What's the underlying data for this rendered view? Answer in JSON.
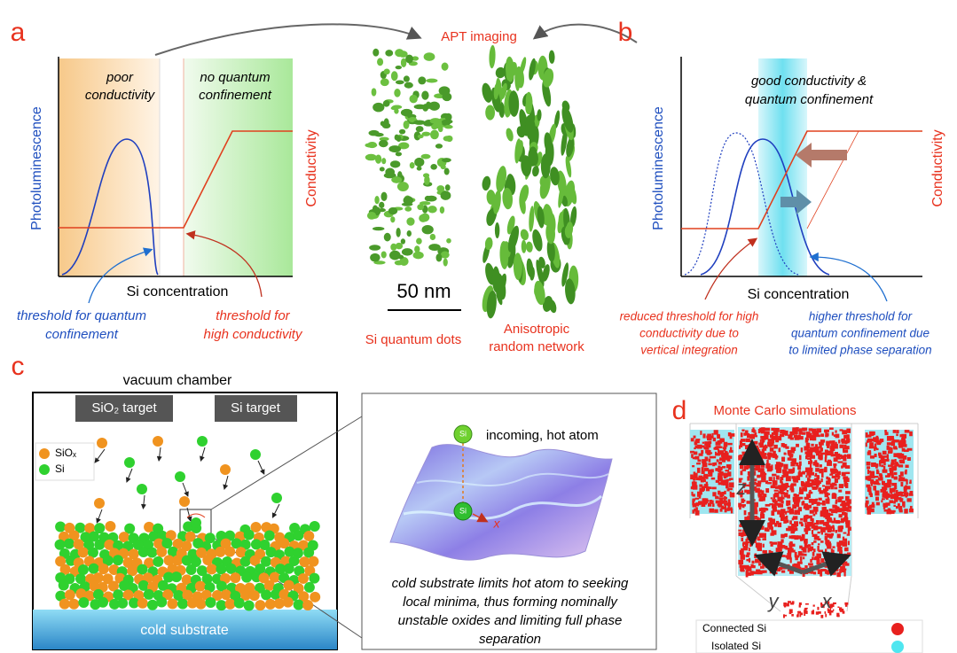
{
  "panel_a": {
    "letter": "a",
    "region_left": [
      "poor",
      "conductivity"
    ],
    "region_right": [
      "no quantum",
      "confinement"
    ],
    "y_left": "Photoluminescence",
    "y_right": "Conductivity",
    "x_label": "Si concentration",
    "note_blue": [
      "threshold for quantum",
      "confinement"
    ],
    "note_red": [
      "threshold for",
      "high conductivity"
    ]
  },
  "apt": {
    "title": "APT imaging",
    "scale": "50 nm",
    "left": [
      "Si quantum dots"
    ],
    "right": [
      "Anisotropic",
      "random network"
    ]
  },
  "panel_b": {
    "letter": "b",
    "region": [
      "good conductivity &",
      "quantum confinement"
    ],
    "y_left": "Photoluminescence",
    "y_right": "Conductivity",
    "x_label": "Si concentration",
    "note_red": [
      "reduced threshold for high",
      "conductivity due to",
      "vertical integration"
    ],
    "note_blue": [
      "higher threshold for",
      "quantum confinement due",
      "to limited phase separation"
    ]
  },
  "panel_c": {
    "letter": "c",
    "chamber": "vacuum chamber",
    "target_1": "SiO₂ target",
    "target_2": "Si target",
    "legend_siox": "SiOₓ",
    "legend_si": "Si",
    "substrate": "cold substrate",
    "atom": "Si",
    "incoming": "incoming, hot atom",
    "direction": "x",
    "caption": [
      "cold substrate limits hot atom to seeking",
      "local minima, thus forming nominally",
      "unstable oxides and limiting full phase",
      "separation"
    ]
  },
  "panel_d": {
    "letter": "d",
    "title": "Monte Carlo simulations",
    "axis_z": "z",
    "axis_y": "y",
    "axis_x": "x",
    "legend_connected": "Connected Si",
    "legend_isolated": "Isolated Si"
  }
}
